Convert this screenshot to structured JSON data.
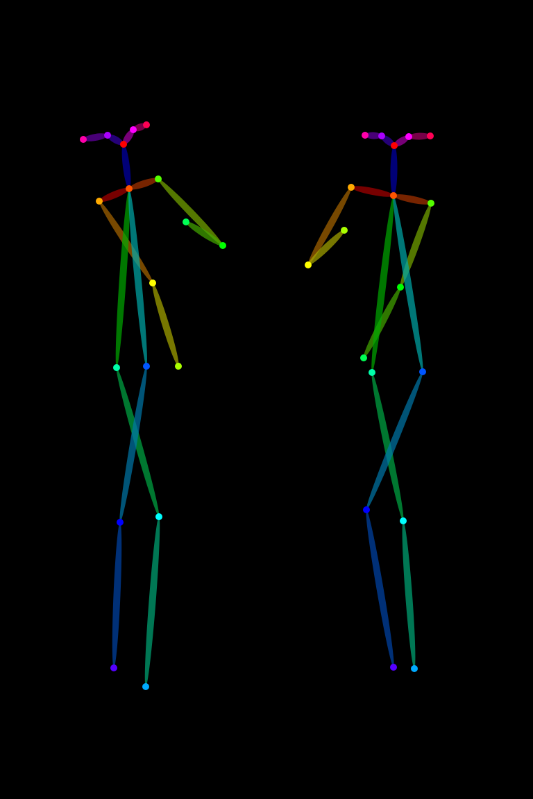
{
  "image": {
    "background": "#000000",
    "kind": "pose-skeleton-render",
    "figure_count": 2
  },
  "palette": {
    "head": "#cc00ff",
    "neck": "#0000aa",
    "shoulders": "#aa2200",
    "arms": "#aaaa00",
    "torso": "#00aa66",
    "legs": "#0066aa"
  }
}
